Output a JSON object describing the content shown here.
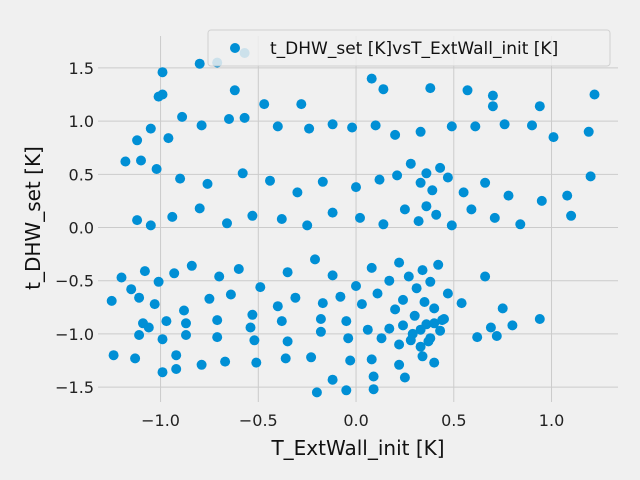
{
  "chart_data": {
    "type": "scatter",
    "xlabel": "T_ExtWall_init [K]",
    "ylabel": "t_DHW_set [K]",
    "xlim": [
      -1.32,
      1.34
    ],
    "ylim": [
      -1.64,
      1.8
    ],
    "xticks": [
      -1.0,
      -0.5,
      0.0,
      0.5,
      1.0
    ],
    "xtick_labels": [
      "−1.0",
      "−0.5",
      "0.0",
      "0.5",
      "1.0"
    ],
    "yticks": [
      -1.5,
      -1.0,
      -0.5,
      0.0,
      0.5,
      1.0,
      1.5
    ],
    "ytick_labels": [
      "−1.5",
      "−1.0",
      "−0.5",
      "0.0",
      "0.5",
      "1.0",
      "1.5"
    ],
    "grid": true,
    "legend_position": "top-right",
    "marker_color": "#008fd5",
    "series": [
      {
        "name": "t_DHW_set [K]vsT_ExtWall_init [K]",
        "points": [
          [
            -0.99,
            1.46
          ],
          [
            -0.8,
            1.54
          ],
          [
            -0.71,
            1.55
          ],
          [
            -0.57,
            1.64
          ],
          [
            -0.99,
            1.25
          ],
          [
            -1.01,
            1.23
          ],
          [
            -0.62,
            1.29
          ],
          [
            -0.47,
            1.16
          ],
          [
            -0.28,
            1.16
          ],
          [
            0.08,
            1.4
          ],
          [
            0.14,
            1.3
          ],
          [
            0.38,
            1.31
          ],
          [
            0.57,
            1.29
          ],
          [
            0.7,
            1.24
          ],
          [
            0.7,
            1.14
          ],
          [
            0.94,
            1.14
          ],
          [
            1.22,
            1.25
          ],
          [
            -1.18,
            0.62
          ],
          [
            -1.12,
            0.82
          ],
          [
            -1.05,
            0.93
          ],
          [
            -0.96,
            0.84
          ],
          [
            -0.89,
            1.04
          ],
          [
            -0.79,
            0.96
          ],
          [
            -0.65,
            1.02
          ],
          [
            -0.57,
            1.03
          ],
          [
            -0.4,
            0.95
          ],
          [
            -0.24,
            0.93
          ],
          [
            -0.12,
            0.97
          ],
          [
            -0.02,
            0.94
          ],
          [
            0.1,
            0.96
          ],
          [
            0.2,
            0.87
          ],
          [
            0.33,
            0.9
          ],
          [
            0.49,
            0.95
          ],
          [
            0.61,
            0.95
          ],
          [
            0.76,
            0.97
          ],
          [
            0.9,
            0.96
          ],
          [
            1.01,
            0.85
          ],
          [
            1.19,
            0.9
          ],
          [
            -1.1,
            0.63
          ],
          [
            -1.02,
            0.55
          ],
          [
            -0.9,
            0.46
          ],
          [
            -0.76,
            0.41
          ],
          [
            -0.58,
            0.51
          ],
          [
            -0.44,
            0.44
          ],
          [
            -0.3,
            0.33
          ],
          [
            -0.17,
            0.43
          ],
          [
            0.0,
            0.38
          ],
          [
            0.12,
            0.45
          ],
          [
            0.21,
            0.49
          ],
          [
            0.28,
            0.6
          ],
          [
            0.33,
            0.42
          ],
          [
            0.36,
            0.51
          ],
          [
            0.39,
            0.35
          ],
          [
            0.43,
            0.56
          ],
          [
            0.47,
            0.47
          ],
          [
            0.55,
            0.33
          ],
          [
            0.66,
            0.42
          ],
          [
            0.78,
            0.3
          ],
          [
            0.95,
            0.25
          ],
          [
            1.08,
            0.3
          ],
          [
            1.2,
            0.48
          ],
          [
            -1.12,
            0.07
          ],
          [
            -1.05,
            0.02
          ],
          [
            -0.94,
            0.1
          ],
          [
            -0.8,
            0.18
          ],
          [
            -0.66,
            0.04
          ],
          [
            -0.53,
            0.11
          ],
          [
            -0.38,
            0.08
          ],
          [
            -0.25,
            0.02
          ],
          [
            -0.12,
            0.14
          ],
          [
            0.02,
            0.09
          ],
          [
            0.14,
            0.03
          ],
          [
            0.25,
            0.17
          ],
          [
            0.32,
            0.06
          ],
          [
            0.36,
            0.2
          ],
          [
            0.41,
            0.12
          ],
          [
            0.49,
            0.02
          ],
          [
            0.59,
            0.17
          ],
          [
            0.71,
            0.09
          ],
          [
            0.84,
            0.03
          ],
          [
            1.1,
            0.11
          ],
          [
            -1.2,
            -0.47
          ],
          [
            -1.15,
            -0.58
          ],
          [
            -1.08,
            -0.41
          ],
          [
            -1.01,
            -0.51
          ],
          [
            -0.93,
            -0.43
          ],
          [
            -0.84,
            -0.36
          ],
          [
            -0.7,
            -0.46
          ],
          [
            -0.6,
            -0.39
          ],
          [
            -0.49,
            -0.56
          ],
          [
            -0.35,
            -0.42
          ],
          [
            -0.21,
            -0.3
          ],
          [
            -0.12,
            -0.45
          ],
          [
            0.0,
            -0.55
          ],
          [
            0.08,
            -0.38
          ],
          [
            0.17,
            -0.5
          ],
          [
            0.22,
            -0.33
          ],
          [
            0.27,
            -0.46
          ],
          [
            0.31,
            -0.57
          ],
          [
            0.34,
            -0.4
          ],
          [
            0.38,
            -0.51
          ],
          [
            0.42,
            -0.35
          ],
          [
            0.47,
            -0.62
          ],
          [
            0.66,
            -0.46
          ],
          [
            -1.25,
            -0.69
          ],
          [
            -1.11,
            -0.66
          ],
          [
            -1.03,
            -0.72
          ],
          [
            -0.88,
            -0.78
          ],
          [
            -0.75,
            -0.67
          ],
          [
            -0.64,
            -0.63
          ],
          [
            -0.53,
            -0.82
          ],
          [
            -0.4,
            -0.74
          ],
          [
            -0.31,
            -0.66
          ],
          [
            -0.17,
            -0.71
          ],
          [
            -0.08,
            -0.65
          ],
          [
            0.03,
            -0.72
          ],
          [
            0.11,
            -0.62
          ],
          [
            0.2,
            -0.77
          ],
          [
            0.24,
            -0.68
          ],
          [
            0.3,
            -0.83
          ],
          [
            0.35,
            -0.7
          ],
          [
            0.4,
            -0.76
          ],
          [
            0.44,
            -0.87
          ],
          [
            0.54,
            -0.71
          ],
          [
            0.75,
            -0.76
          ],
          [
            -1.09,
            -0.9
          ],
          [
            -1.06,
            -0.94
          ],
          [
            -0.97,
            -0.88
          ],
          [
            -0.87,
            -0.9
          ],
          [
            -0.71,
            -0.87
          ],
          [
            -0.54,
            -0.94
          ],
          [
            -0.38,
            -0.88
          ],
          [
            -0.18,
            -0.86
          ],
          [
            -0.05,
            -0.88
          ],
          [
            0.06,
            -0.96
          ],
          [
            0.17,
            -0.95
          ],
          [
            0.24,
            -0.92
          ],
          [
            0.29,
            -1.0
          ],
          [
            0.33,
            -0.96
          ],
          [
            0.36,
            -0.91
          ],
          [
            0.38,
            -1.04
          ],
          [
            0.4,
            -0.9
          ],
          [
            0.43,
            -0.97
          ],
          [
            0.45,
            -0.86
          ],
          [
            0.69,
            -0.94
          ],
          [
            0.8,
            -0.92
          ],
          [
            0.94,
            -0.86
          ],
          [
            -1.11,
            -1.01
          ],
          [
            -0.99,
            -1.05
          ],
          [
            -0.87,
            -1.01
          ],
          [
            -0.71,
            -1.03
          ],
          [
            -0.52,
            -1.06
          ],
          [
            -0.35,
            -1.07
          ],
          [
            -0.18,
            -0.98
          ],
          [
            -0.04,
            -1.04
          ],
          [
            0.13,
            -1.04
          ],
          [
            0.22,
            -1.1
          ],
          [
            0.28,
            -1.06
          ],
          [
            0.33,
            -1.12
          ],
          [
            0.37,
            -1.07
          ],
          [
            0.62,
            -1.03
          ],
          [
            0.72,
            -1.02
          ],
          [
            -1.24,
            -1.2
          ],
          [
            -1.13,
            -1.23
          ],
          [
            -0.92,
            -1.2
          ],
          [
            -0.79,
            -1.29
          ],
          [
            -0.67,
            -1.26
          ],
          [
            -0.51,
            -1.27
          ],
          [
            -0.36,
            -1.23
          ],
          [
            -0.23,
            -1.22
          ],
          [
            -0.03,
            -1.25
          ],
          [
            0.08,
            -1.24
          ],
          [
            0.22,
            -1.29
          ],
          [
            0.34,
            -1.21
          ],
          [
            0.4,
            -1.27
          ],
          [
            -0.99,
            -1.36
          ],
          [
            -0.92,
            -1.33
          ],
          [
            -0.2,
            -1.55
          ],
          [
            -0.12,
            -1.43
          ],
          [
            -0.05,
            -1.53
          ],
          [
            0.09,
            -1.4
          ],
          [
            0.09,
            -1.52
          ],
          [
            0.25,
            -1.41
          ]
        ]
      }
    ]
  }
}
